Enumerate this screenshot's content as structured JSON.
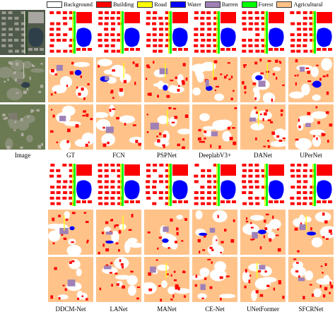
{
  "legend": [
    {
      "label": "Background",
      "color": "#ffffff"
    },
    {
      "label": "Building",
      "color": "#ff0000"
    },
    {
      "label": "Road",
      "color": "#ffff00"
    },
    {
      "label": "Water",
      "color": "#0000ff"
    },
    {
      "label": "Barren",
      "color": "#9f81b7"
    },
    {
      "label": "Forest",
      "color": "#00ff00"
    },
    {
      "label": "Agricultural",
      "color": "#ffc38a"
    }
  ],
  "top_labels": [
    "Image",
    "GT",
    "FCN",
    "PSPNet",
    "DeeplabV3+",
    "DANet",
    "UPerNet"
  ],
  "bottom_labels": [
    "DDCM-Net",
    "LANet",
    "MANet",
    "CE-Net",
    "UNetFormer",
    "SFCRNet"
  ],
  "colors": {
    "background": "#ffffff",
    "building": "#ff0000",
    "road": "#ffff00",
    "water": "#0000ff",
    "barren": "#9f81b7",
    "forest": "#00ff00",
    "agricultural": "#ffc38a",
    "aerial_dark": "#4f5a4a",
    "aerial_field": "#6b7a52"
  }
}
